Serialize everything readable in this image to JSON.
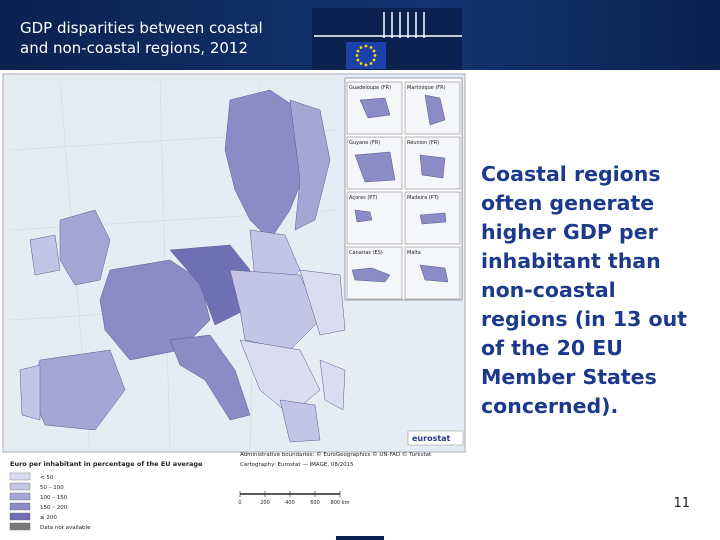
{
  "header": {
    "title_lines": [
      "GDP disparities between coastal",
      "and non-coastal regions, 2012"
    ]
  },
  "body": {
    "text": "Coastal regions often generate higher GDP per inhabitant than non-coastal regions (in 13 out of the 20 EU Member States concerned)."
  },
  "map": {
    "insets": [
      "Guadeloupe (FR)",
      "Martinique (FR)",
      "Guyane (FR)",
      "Réunion (FR)",
      "Açores (PT)",
      "Madeira (PT)",
      "Canarias (ES)",
      "Malta"
    ],
    "logo": "eurostat",
    "legend_title": "Euro per inhabitant in percentage of the EU average",
    "legend": [
      "< 50",
      "50 – 100",
      "100 – 150",
      "150 – 200",
      "≥ 200",
      "Data not available"
    ],
    "credits": [
      "Administrative boundaries: © EuroGeographics © UN-FAO © Turkstat",
      "Cartography: Eurostat — IMAGE, 08/2015"
    ],
    "scale": [
      "0",
      "200",
      "400",
      "600",
      "800 km"
    ]
  },
  "footer": {
    "page_number": "11"
  }
}
